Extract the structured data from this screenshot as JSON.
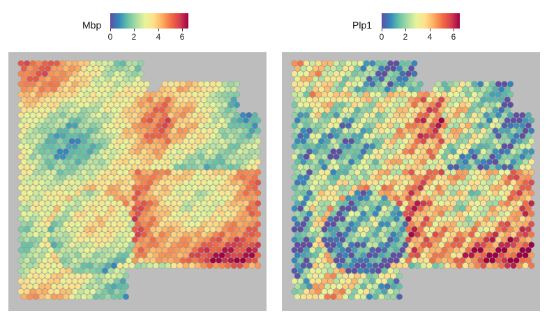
{
  "panels": [
    {
      "gene": "Mbp",
      "legend": {
        "ticks": [
          "0",
          "2",
          "4",
          "6"
        ],
        "min": 0,
        "max": 6.5
      },
      "colors": [
        "#5e4fa2",
        "#3288bd",
        "#66c2a5",
        "#abdda4",
        "#e6f598",
        "#fee08b",
        "#fdae61",
        "#f46d43",
        "#d53e4f",
        "#9e0142"
      ]
    },
    {
      "gene": "Plp1",
      "legend": {
        "ticks": [
          "0",
          "2",
          "4",
          "6"
        ],
        "min": 0,
        "max": 6.5
      },
      "colors": [
        "#5e4fa2",
        "#3288bd",
        "#66c2a5",
        "#abdda4",
        "#e6f598",
        "#fee08b",
        "#fdae61",
        "#f46d43",
        "#d53e4f",
        "#9e0142"
      ]
    }
  ]
}
